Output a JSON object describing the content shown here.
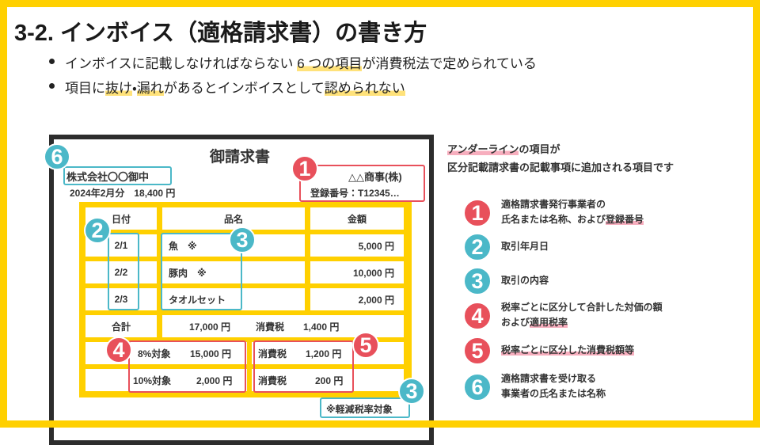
{
  "title": "3-2. インボイス（適格請求書）の書き方",
  "bullets": [
    [
      "インボイスに記載しなければならない ",
      "6 つの項目",
      "が消費税法で定められている"
    ],
    [
      "項目に",
      "抜け",
      "・",
      "漏れ",
      "があるとインボイスとして",
      "認められない"
    ]
  ],
  "invoice": {
    "title": "御請求書",
    "recipient": "株式会社〇〇御中",
    "period_amount": "2024年2月分　18,400 円",
    "issuer": "△△商事(株)",
    "registration": "登録番号：T12345…",
    "headers": [
      "日付",
      "品名",
      "金額"
    ],
    "rows": [
      [
        "2/1",
        "魚　※",
        "5,000 円"
      ],
      [
        "2/2",
        "豚肉　※",
        "10,000 円"
      ],
      [
        "2/3",
        "タオルセット",
        "2,000 円"
      ]
    ],
    "total": [
      "合計",
      "17,000 円",
      "消費税",
      "1,400 円"
    ],
    "tax_rows": [
      [
        "8%対象",
        "15,000 円",
        "消費税",
        "1,200 円"
      ],
      [
        "10%対象",
        "2,000 円",
        "消費税",
        "200 円"
      ]
    ],
    "note": "※軽減税率対象",
    "markers": [
      "6",
      "1",
      "2",
      "3",
      "4",
      "5",
      "3"
    ]
  },
  "legend": {
    "heading": [
      "アンダーライン",
      "の項目が",
      "区分記載請求書の記載事項に追加される項目です"
    ],
    "items": [
      {
        "number": "1",
        "lines": [
          [
            "適格請求書発行事業者の"
          ],
          [
            "氏名または名称、および",
            "登録番号"
          ]
        ]
      },
      {
        "number": "2",
        "lines": [
          [
            "取引年月日"
          ]
        ]
      },
      {
        "number": "3",
        "lines": [
          [
            "取引の内容"
          ]
        ]
      },
      {
        "number": "4",
        "lines": [
          [
            "税率ごとに区分して合計した対価の額"
          ],
          [
            "および",
            "適用税率"
          ]
        ]
      },
      {
        "number": "5",
        "lines": [
          [
            "税率ごとに区分した消費税額等"
          ]
        ]
      },
      {
        "number": "6",
        "lines": [
          [
            "適格請求書を受け取る"
          ],
          [
            "事業者の氏名または名称"
          ]
        ]
      }
    ]
  }
}
